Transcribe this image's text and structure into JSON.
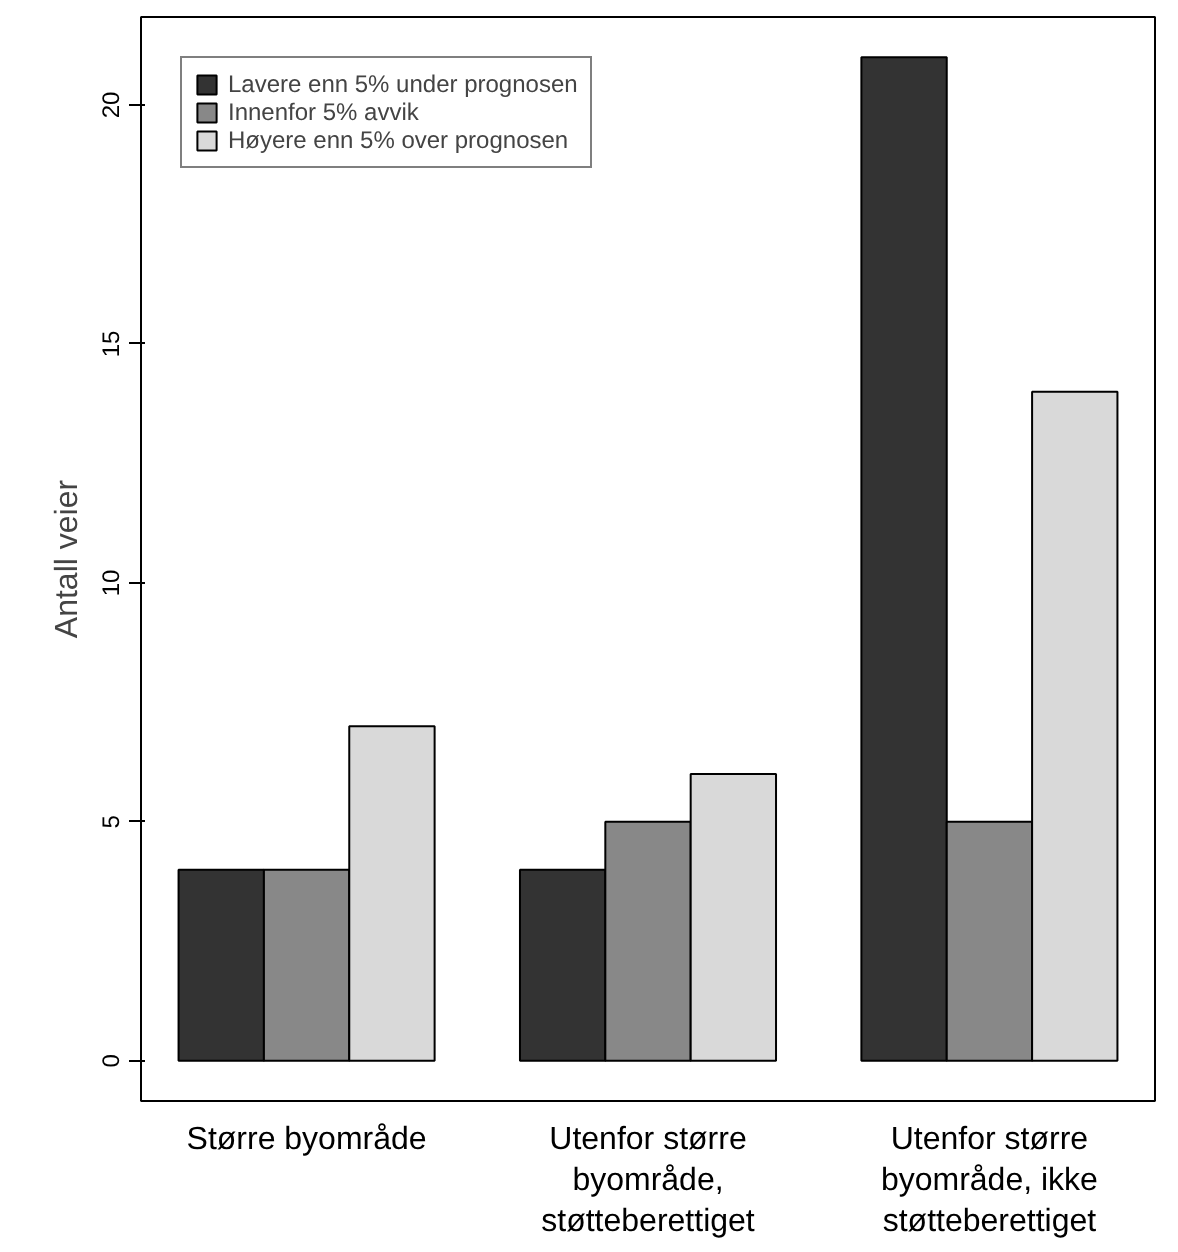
{
  "chart_data": {
    "type": "bar",
    "ylabel": "Antall veier",
    "categories": [
      "Større byområde",
      "Utenfor større byområde, støtteberettiget",
      "Utenfor større byområde, ikke støtteberettiget"
    ],
    "series": [
      {
        "name": "Lavere enn 5% under prognosen",
        "color": "#333333",
        "values": [
          4,
          4,
          21
        ]
      },
      {
        "name": "Innenfor 5% avvik",
        "color": "#888888",
        "values": [
          4,
          5,
          5
        ]
      },
      {
        "name": "Høyere enn 5% over prognosen",
        "color": "#d9d9d9",
        "values": [
          7,
          6,
          14
        ]
      }
    ],
    "ylim": [
      -0.84,
      21.84
    ],
    "yticks": [
      0,
      5,
      10,
      15,
      20
    ],
    "grid": false,
    "legend": "top left"
  }
}
